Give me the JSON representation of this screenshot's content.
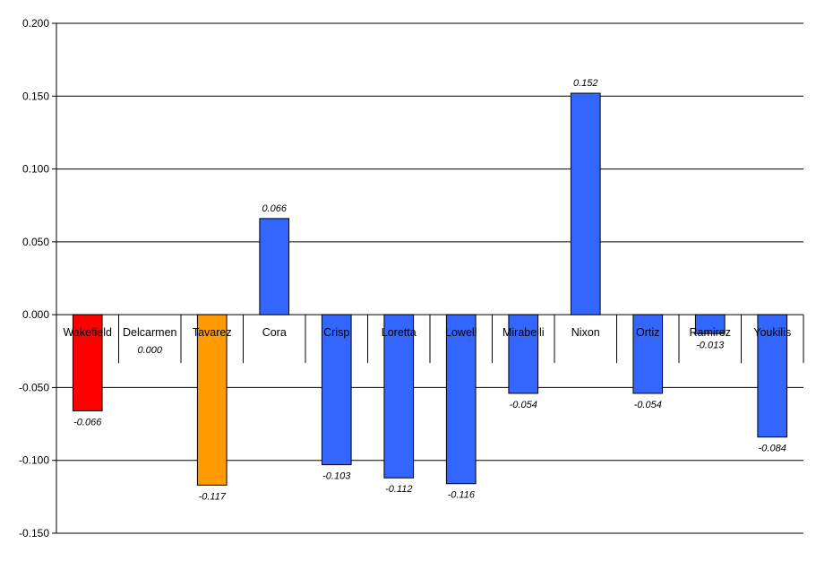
{
  "chart_data": {
    "type": "bar",
    "title": "",
    "xlabel": "",
    "ylabel": "",
    "ylim": [
      -0.15,
      0.2
    ],
    "y_ticks": [
      "0.200",
      "0.150",
      "0.100",
      "0.050",
      "0.000",
      "-0.050",
      "-0.100",
      "-0.150"
    ],
    "y_tick_values": [
      0.2,
      0.15,
      0.1,
      0.05,
      0.0,
      -0.05,
      -0.1,
      -0.15
    ],
    "grid": true,
    "legend": "none",
    "categories": [
      "Wakefield",
      "Delcarmen",
      "Tavarez",
      "Cora",
      "Crisp",
      "Loretta",
      "Lowell",
      "Mirabelli",
      "Nixon",
      "Ortiz",
      "Ramirez",
      "Youkilis"
    ],
    "values": [
      -0.066,
      0.0,
      -0.117,
      0.066,
      -0.103,
      -0.112,
      -0.116,
      -0.054,
      0.152,
      -0.054,
      -0.013,
      -0.084
    ],
    "value_labels": [
      "-0.066",
      "0.000",
      "-0.117",
      "0.066",
      "-0.103",
      "-0.112",
      "-0.116",
      "-0.054",
      "0.152",
      "-0.054",
      "-0.013",
      "-0.084"
    ],
    "bar_colors": [
      "#ff0000",
      "#3366ff",
      "#ff9900",
      "#3366ff",
      "#3366ff",
      "#3366ff",
      "#3366ff",
      "#3366ff",
      "#3366ff",
      "#3366ff",
      "#3366ff",
      "#3366ff"
    ]
  }
}
